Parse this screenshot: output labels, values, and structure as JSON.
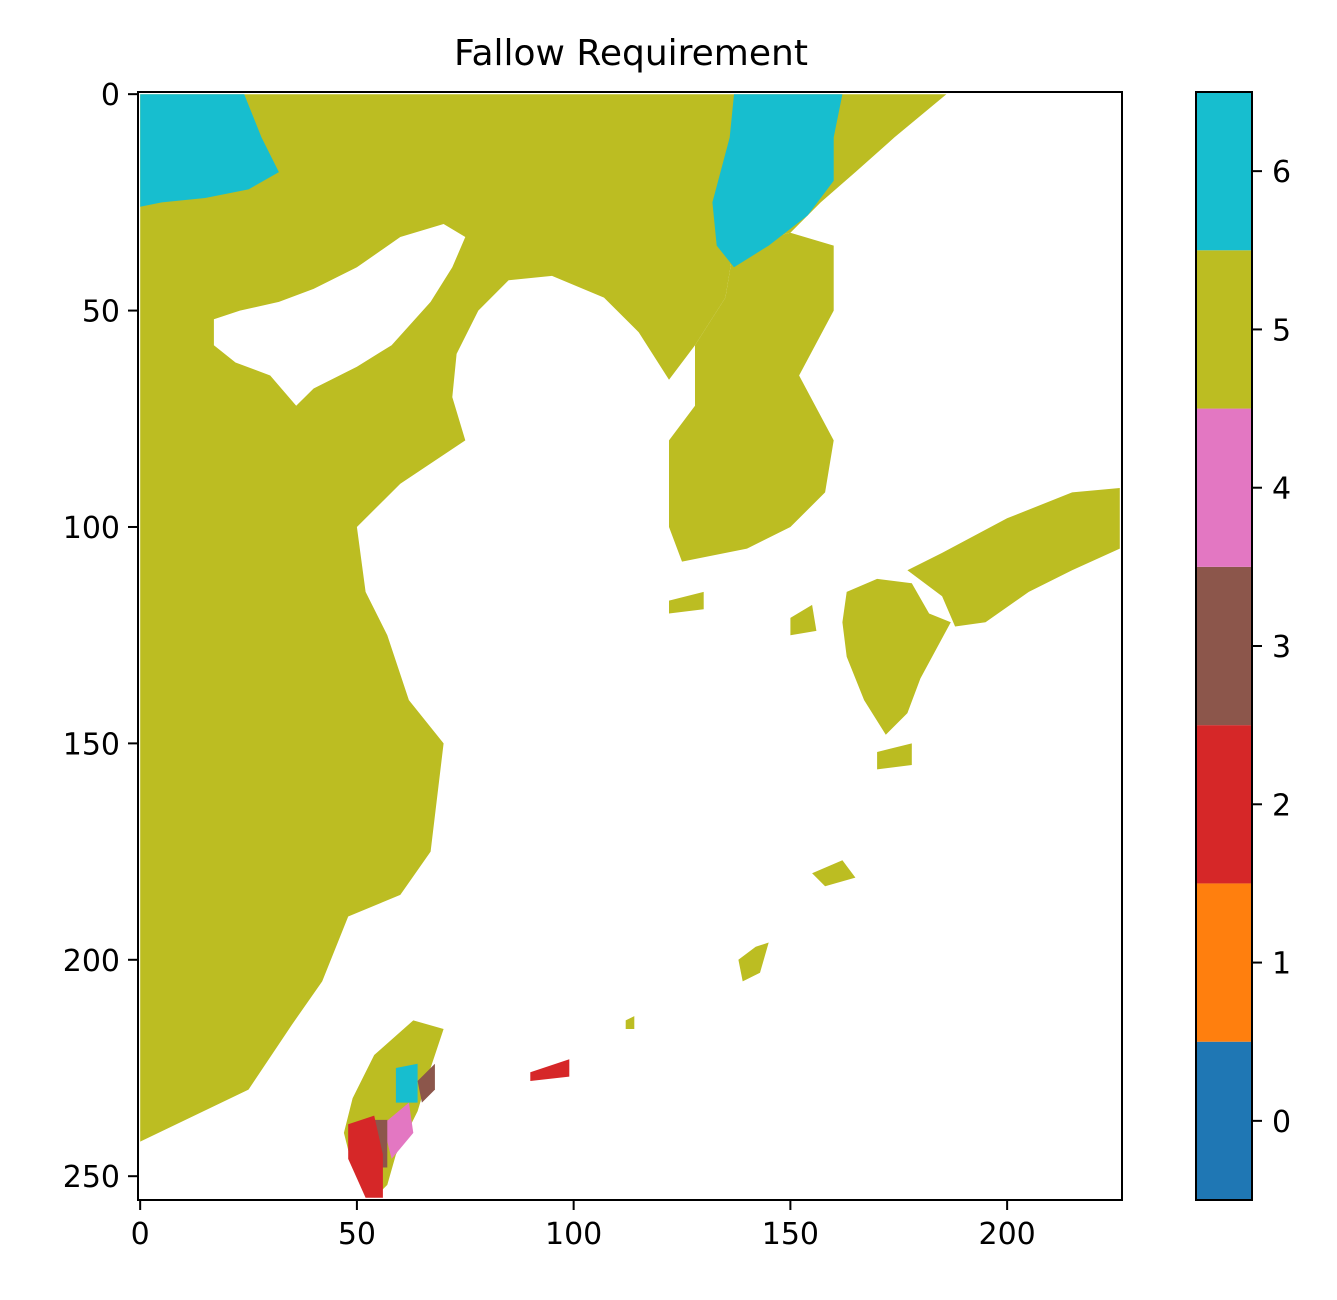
{
  "chart_data": {
    "type": "heatmap",
    "title": "Fallow Requirement",
    "x_ticks": [
      0,
      50,
      100,
      150,
      200
    ],
    "y_ticks": [
      0,
      50,
      100,
      150,
      200,
      250
    ],
    "xlim": [
      -0.5,
      226.5
    ],
    "ylim": [
      255.5,
      -0.5
    ],
    "grid": false,
    "colorbar": {
      "ticks": [
        0,
        1,
        2,
        3,
        4,
        5,
        6
      ],
      "range": [
        -0.5,
        6.5
      ],
      "colors": [
        "#1f77b4",
        "#ff7f0e",
        "#d62728",
        "#8c564b",
        "#e377c2",
        "#bcbd22",
        "#17becf"
      ]
    },
    "background_color": "#ffffff",
    "land_value": 5,
    "regions": [
      {
        "name": "mainland",
        "value": 5,
        "polygon": [
          [
            0,
            0
          ],
          [
            137,
            0
          ],
          [
            137,
            35
          ],
          [
            135,
            47
          ],
          [
            128,
            58
          ],
          [
            122,
            66
          ],
          [
            115,
            55
          ],
          [
            107,
            47
          ],
          [
            95,
            42
          ],
          [
            85,
            43
          ],
          [
            78,
            50
          ],
          [
            73,
            60
          ],
          [
            72,
            70
          ],
          [
            75,
            80
          ],
          [
            60,
            90
          ],
          [
            50,
            100
          ],
          [
            52,
            115
          ],
          [
            57,
            125
          ],
          [
            62,
            140
          ],
          [
            70,
            150
          ],
          [
            67,
            175
          ],
          [
            60,
            185
          ],
          [
            48,
            190
          ],
          [
            42,
            205
          ],
          [
            35,
            215
          ],
          [
            25,
            230
          ],
          [
            0,
            242
          ]
        ]
      },
      {
        "name": "korea",
        "value": 5,
        "polygon": [
          [
            137,
            35
          ],
          [
            150,
            32
          ],
          [
            160,
            35
          ],
          [
            160,
            50
          ],
          [
            152,
            65
          ],
          [
            160,
            80
          ],
          [
            158,
            92
          ],
          [
            150,
            100
          ],
          [
            140,
            105
          ],
          [
            125,
            108
          ],
          [
            122,
            100
          ],
          [
            122,
            80
          ],
          [
            128,
            72
          ],
          [
            128,
            58
          ],
          [
            135,
            47
          ]
        ]
      },
      {
        "name": "north-east",
        "value": 5,
        "polygon": [
          [
            137,
            0
          ],
          [
            186,
            0
          ],
          [
            174,
            10
          ],
          [
            165,
            18
          ],
          [
            157,
            25
          ],
          [
            150,
            32
          ],
          [
            137,
            35
          ]
        ]
      },
      {
        "name": "kyushu",
        "value": 5,
        "polygon": [
          [
            163,
            115
          ],
          [
            170,
            112
          ],
          [
            178,
            113
          ],
          [
            182,
            120
          ],
          [
            187,
            122
          ],
          [
            180,
            135
          ],
          [
            177,
            143
          ],
          [
            172,
            148
          ],
          [
            167,
            140
          ],
          [
            163,
            130
          ],
          [
            162,
            122
          ]
        ]
      },
      {
        "name": "honshu-shikoku",
        "value": 5,
        "polygon": [
          [
            177,
            110
          ],
          [
            185,
            106
          ],
          [
            200,
            98
          ],
          [
            215,
            92
          ],
          [
            226,
            91
          ],
          [
            226,
            105
          ],
          [
            215,
            110
          ],
          [
            205,
            115
          ],
          [
            195,
            122
          ],
          [
            188,
            123
          ],
          [
            185,
            116
          ]
        ]
      },
      {
        "name": "taiwan",
        "value": 5,
        "polygon": [
          [
            63,
            214
          ],
          [
            70,
            216
          ],
          [
            67,
            225
          ],
          [
            64,
            235
          ],
          [
            59,
            245
          ],
          [
            57,
            252
          ],
          [
            54,
            255
          ],
          [
            49,
            248
          ],
          [
            47,
            240
          ],
          [
            49,
            232
          ],
          [
            54,
            222
          ]
        ]
      },
      {
        "name": "ne-tip-6",
        "value": 6,
        "polygon": [
          [
            137,
            0
          ],
          [
            162,
            0
          ],
          [
            160,
            10
          ],
          [
            160,
            20
          ],
          [
            154,
            28
          ],
          [
            145,
            35
          ],
          [
            137,
            40
          ],
          [
            133,
            35
          ],
          [
            132,
            25
          ],
          [
            136,
            10
          ]
        ]
      },
      {
        "name": "nw-6",
        "value": 6,
        "polygon": [
          [
            0,
            0
          ],
          [
            24,
            0
          ],
          [
            28,
            10
          ],
          [
            32,
            18
          ],
          [
            25,
            22
          ],
          [
            15,
            24
          ],
          [
            5,
            25
          ],
          [
            0,
            26
          ]
        ]
      },
      {
        "name": "taiwan-6",
        "value": 6,
        "polygon": [
          [
            59,
            225
          ],
          [
            64,
            224
          ],
          [
            64,
            233
          ],
          [
            59,
            233
          ]
        ]
      },
      {
        "name": "taiwan-4",
        "value": 4,
        "polygon": [
          [
            56,
            238
          ],
          [
            62,
            233
          ],
          [
            63,
            240
          ],
          [
            58,
            246
          ]
        ]
      },
      {
        "name": "taiwan-3",
        "value": 3,
        "polygon": [
          [
            54,
            237
          ],
          [
            57,
            237
          ],
          [
            57,
            248
          ],
          [
            54,
            248
          ]
        ]
      },
      {
        "name": "taiwan-3b",
        "value": 3,
        "polygon": [
          [
            64,
            228
          ],
          [
            68,
            224
          ],
          [
            68,
            230
          ],
          [
            65,
            233
          ]
        ]
      },
      {
        "name": "taiwan-2",
        "value": 2,
        "polygon": [
          [
            48,
            238
          ],
          [
            54,
            236
          ],
          [
            56,
            245
          ],
          [
            56,
            255
          ],
          [
            52,
            255
          ],
          [
            48,
            246
          ]
        ]
      },
      {
        "name": "ryukyu-2",
        "value": 2,
        "polygon": [
          [
            90,
            226
          ],
          [
            99,
            223
          ],
          [
            99,
            227
          ],
          [
            90,
            228
          ]
        ]
      }
    ],
    "holes": [
      {
        "name": "bohai-sea",
        "polygon": [
          [
            17,
            52
          ],
          [
            23,
            50
          ],
          [
            32,
            48
          ],
          [
            40,
            45
          ],
          [
            50,
            40
          ],
          [
            60,
            33
          ],
          [
            70,
            30
          ],
          [
            75,
            33
          ],
          [
            72,
            40
          ],
          [
            67,
            48
          ],
          [
            58,
            58
          ],
          [
            50,
            63
          ],
          [
            40,
            68
          ],
          [
            36,
            72
          ],
          [
            30,
            65
          ],
          [
            22,
            62
          ],
          [
            17,
            58
          ]
        ]
      }
    ],
    "islands": [
      {
        "value": 5,
        "polygon": [
          [
            122,
            117
          ],
          [
            130,
            115
          ],
          [
            130,
            119
          ],
          [
            122,
            120
          ]
        ]
      },
      {
        "value": 5,
        "polygon": [
          [
            138,
            200
          ],
          [
            142,
            197
          ],
          [
            145,
            196
          ],
          [
            143,
            203
          ],
          [
            139,
            205
          ]
        ]
      },
      {
        "value": 5,
        "polygon": [
          [
            155,
            180
          ],
          [
            162,
            177
          ],
          [
            165,
            181
          ],
          [
            158,
            183
          ]
        ]
      },
      {
        "value": 5,
        "polygon": [
          [
            150,
            121
          ],
          [
            155,
            118
          ],
          [
            156,
            124
          ],
          [
            150,
            125
          ]
        ]
      },
      {
        "value": 5,
        "polygon": [
          [
            170,
            152
          ],
          [
            178,
            150
          ],
          [
            178,
            155
          ],
          [
            170,
            156
          ]
        ]
      },
      {
        "value": 5,
        "polygon": [
          [
            112,
            214
          ],
          [
            114,
            213
          ],
          [
            114,
            216
          ],
          [
            112,
            216
          ]
        ]
      }
    ]
  }
}
